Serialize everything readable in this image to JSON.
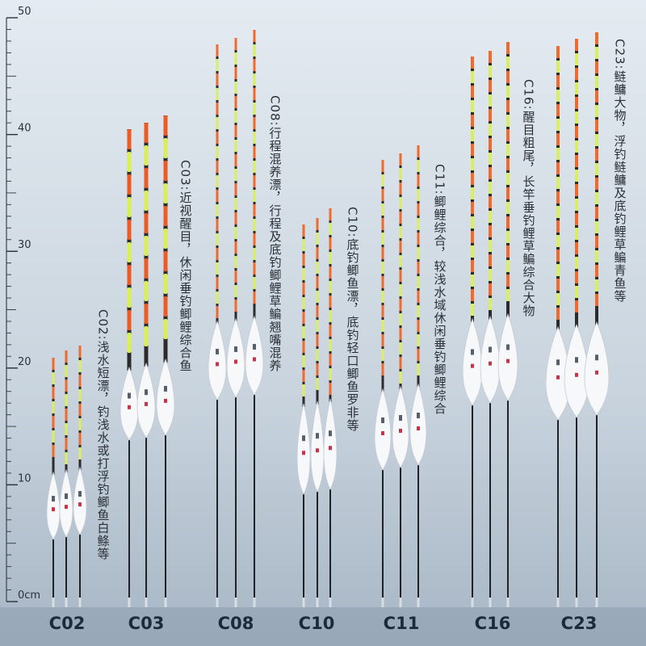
{
  "ruler": {
    "ticks": [
      {
        "value": 0,
        "label": "0cm"
      },
      10,
      20,
      30,
      40,
      50
    ]
  },
  "products": [
    {
      "code": "C02",
      "description": "C02:浅水短漂，钓浅水或打浮钓鲫鱼白鲦等"
    },
    {
      "code": "C03",
      "description": "C03:近视醒目，休闲垂钓鲫鲤综合鱼"
    },
    {
      "code": "C08",
      "description": "C08:行程混养漂，行程及底钓鲫鲤草鳊翘嘴混养"
    },
    {
      "code": "C10",
      "description": "C10:底钓鲫鱼漂，底钓轻口鲫鱼罗非等"
    },
    {
      "code": "C11",
      "description": "C11:鲫鲤综合，较浅水域休闲垂钓鲫鲤综合"
    },
    {
      "code": "C16",
      "description": "C16:醒目粗尾，长竿垂钓鲤草鳊综合大物"
    },
    {
      "code": "C23",
      "description": "C23:鲢鳙大物，浮钓鲢鳙及底钓鲤草鳊青鱼等"
    }
  ]
}
